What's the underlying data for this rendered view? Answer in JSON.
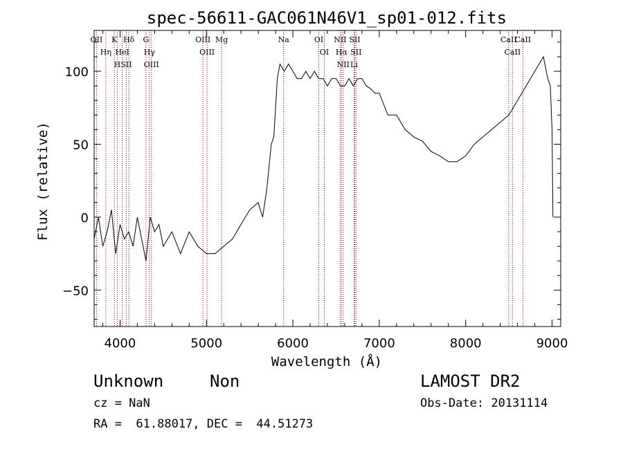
{
  "chart_data": {
    "type": "line",
    "title": "spec-56611-GAC061N46V1_sp01-012.fits",
    "xlabel": "Wavelength (Å)",
    "ylabel": "Flux (relative)",
    "xlim": [
      3700,
      9100
    ],
    "ylim": [
      -75,
      128
    ],
    "xticks": [
      4000,
      5000,
      6000,
      7000,
      8000,
      9000
    ],
    "yticks": [
      -50,
      0,
      50,
      100
    ],
    "grid": false,
    "line_color": "#000000",
    "marker_color": "#8b0000",
    "series": [
      {
        "x": [
          3700,
          3750,
          3800,
          3850,
          3900,
          3950,
          4000,
          4050,
          4100,
          4150,
          4200,
          4250,
          4300,
          4350,
          4400,
          4450,
          4500,
          4600,
          4700,
          4800,
          4900,
          5000,
          5100,
          5200,
          5300,
          5400,
          5500,
          5600,
          5650,
          5700,
          5750,
          5780,
          5800,
          5820,
          5850,
          5900,
          5950,
          6000,
          6050,
          6100,
          6150,
          6200,
          6250,
          6300,
          6350,
          6400,
          6450,
          6500,
          6550,
          6600,
          6650,
          6700,
          6750,
          6800,
          6850,
          6900,
          6950,
          7000,
          7100,
          7200,
          7300,
          7400,
          7500,
          7600,
          7700,
          7800,
          7900,
          8000,
          8100,
          8200,
          8300,
          8400,
          8500,
          8550,
          8600,
          8650,
          8700,
          8750,
          8800,
          8850,
          8900,
          8950,
          8980,
          9000,
          9010
        ],
        "y": [
          -15,
          0,
          -20,
          -10,
          5,
          -25,
          -5,
          -15,
          -10,
          -20,
          0,
          -15,
          -30,
          0,
          -10,
          -5,
          -20,
          -10,
          -25,
          -10,
          -20,
          -25,
          -25,
          -20,
          -15,
          -5,
          5,
          10,
          0,
          20,
          50,
          55,
          75,
          95,
          105,
          100,
          105,
          100,
          95,
          95,
          100,
          95,
          100,
          95,
          95,
          90,
          95,
          95,
          90,
          90,
          95,
          90,
          95,
          95,
          90,
          88,
          85,
          85,
          70,
          70,
          60,
          55,
          52,
          45,
          42,
          38,
          38,
          42,
          50,
          55,
          60,
          65,
          70,
          75,
          80,
          85,
          90,
          95,
          100,
          105,
          110,
          95,
          90,
          60,
          0
        ]
      }
    ],
    "lines": [
      {
        "label": "OII",
        "x": 3727
      },
      {
        "label": "Hη",
        "x": 3835
      },
      {
        "label": "K",
        "x": 3934
      },
      {
        "label": "H",
        "x": 3968
      },
      {
        "label": "HeI",
        "x": 4026
      },
      {
        "label": "Hδ",
        "x": 4102
      },
      {
        "label": "SII",
        "x": 4072
      },
      {
        "label": "G",
        "x": 4300
      },
      {
        "label": "Hγ",
        "x": 4340
      },
      {
        "label": "OIII",
        "x": 4363
      },
      {
        "label": "OIII",
        "x": 4959
      },
      {
        "label": "OIII",
        "x": 5007
      },
      {
        "label": "Mg",
        "x": 5175
      },
      {
        "label": "Na",
        "x": 5893
      },
      {
        "label": "OI",
        "x": 6300
      },
      {
        "label": "OI",
        "x": 6364
      },
      {
        "label": "NII",
        "x": 6548
      },
      {
        "label": "Hα",
        "x": 6563
      },
      {
        "label": "NII",
        "x": 6583
      },
      {
        "label": "Li",
        "x": 6708
      },
      {
        "label": "SII",
        "x": 6716
      },
      {
        "label": "SII",
        "x": 6731
      },
      {
        "label": "CaII",
        "x": 8498
      },
      {
        "label": "CaII",
        "x": 8542
      },
      {
        "label": "CaII",
        "x": 8662
      }
    ]
  },
  "footer": {
    "object_class": "Unknown",
    "subclass": "Non",
    "cz": "cz = NaN",
    "coords": "RA =  61.88017, DEC =  44.51273",
    "survey": "LAMOST DR2",
    "obs_date": "Obs-Date: 20131114"
  }
}
